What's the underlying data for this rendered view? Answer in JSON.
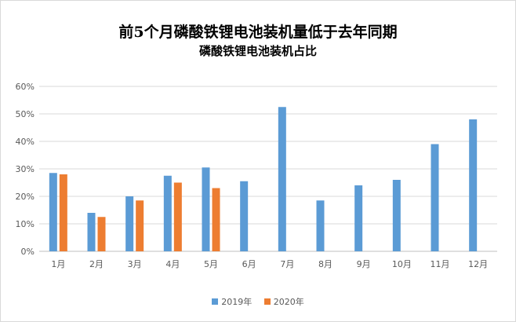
{
  "chart_data": {
    "type": "bar",
    "title": "前5个月磷酸铁锂电池装机量低于去年同期",
    "subtitle": "磷酸铁锂电池装机占比",
    "categories": [
      "1月",
      "2月",
      "3月",
      "4月",
      "5月",
      "6月",
      "7月",
      "8月",
      "9月",
      "10月",
      "11月",
      "12月"
    ],
    "series": [
      {
        "name": "2019年",
        "color": "#5b9bd5",
        "values": [
          28.5,
          14,
          20,
          27.5,
          30.5,
          25.5,
          52.5,
          18.5,
          24,
          26,
          39,
          48
        ]
      },
      {
        "name": "2020年",
        "color": "#ed7d31",
        "values": [
          28,
          12.5,
          18.5,
          25,
          23,
          null,
          null,
          null,
          null,
          null,
          null,
          null
        ]
      }
    ],
    "yticks": [
      "0%",
      "10%",
      "20%",
      "30%",
      "40%",
      "50%",
      "60%"
    ],
    "ylim": [
      0,
      60
    ],
    "grid": true,
    "legend": "bottom"
  }
}
